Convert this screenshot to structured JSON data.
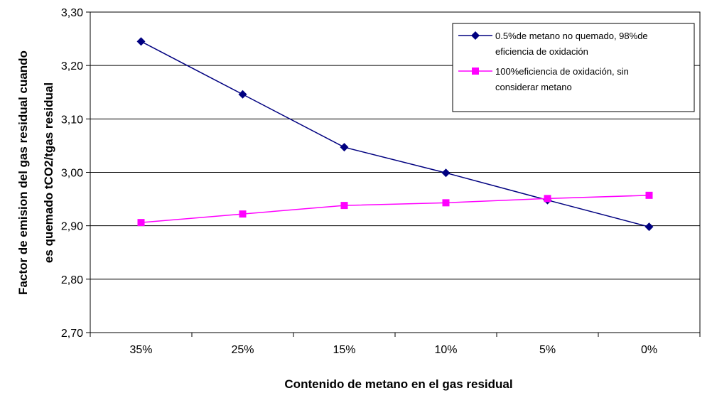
{
  "chart_data": {
    "type": "line",
    "categories": [
      "35%",
      "25%",
      "15%",
      "10%",
      "5%",
      "0%"
    ],
    "xlabel": "Contenido de metano en el gas residual",
    "ylabel": [
      "Factor de emision del gas residual cuando",
      "es quemado  tCO2/tgas residual"
    ],
    "ylim": [
      2.7,
      3.3
    ],
    "yticks": [
      "2,70",
      "2,80",
      "2,90",
      "3,00",
      "3,10",
      "3,20",
      "3,30"
    ],
    "grid": "horizontal",
    "legend_position": "top-right",
    "series": [
      {
        "name": [
          "0.5%de metano no quemado, 98%de",
          "eficiencia de oxidación"
        ],
        "color": "#000080",
        "marker": "diamond",
        "values": [
          3.245,
          3.146,
          3.047,
          2.999,
          2.948,
          2.898
        ]
      },
      {
        "name": [
          "100%eficiencia de oxidación, sin",
          "considerar metano"
        ],
        "color": "#FF00FF",
        "marker": "square",
        "values": [
          2.906,
          2.922,
          2.938,
          2.943,
          2.951,
          2.957
        ]
      }
    ]
  }
}
